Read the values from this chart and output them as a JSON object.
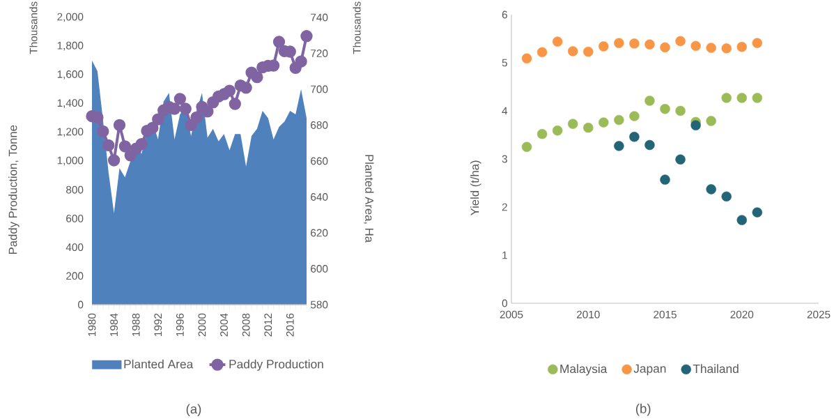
{
  "chart_data": [
    {
      "type": "line",
      "categories": [
        "1980",
        null,
        null,
        null,
        "1984",
        null,
        null,
        null,
        "1988",
        null,
        null,
        null,
        "1992",
        null,
        null,
        null,
        "1996",
        null,
        null,
        null,
        "2000",
        null,
        null,
        null,
        "2004",
        null,
        null,
        null,
        "2008",
        null,
        null,
        null,
        "2012",
        null,
        null,
        null,
        "2016",
        null,
        null,
        null
      ],
      "ylabel": "Paddy Production, Tonne",
      "y2label": "Planted Area, Ha",
      "ylim": [
        0,
        2000
      ],
      "yticks": [
        0,
        200,
        400,
        600,
        800,
        {
          "value": 1000,
          "label": "1,000"
        },
        {
          "value": 1200,
          "label": "1,200"
        },
        {
          "value": 1400,
          "label": "1,400"
        },
        {
          "value": 1600,
          "label": "1,600"
        },
        {
          "value": 1800,
          "label": "1,800"
        },
        {
          "value": 2000,
          "label": "2,000"
        }
      ],
      "y2lim": [
        580,
        740
      ],
      "y2ticks": [
        580,
        600,
        620,
        640,
        660,
        680,
        700,
        720,
        740
      ],
      "legend": "bottom",
      "line_style": "solid",
      "annotations": [
        "Thousands",
        "Thousands",
        "(a)"
      ],
      "series": [
        {
          "name": "Planted Area",
          "type": "area",
          "axis": "y2",
          "color": "#4f81bd",
          "values": [
            716,
            710,
            683,
            654,
            631,
            656,
            651,
            660,
            670,
            664,
            677,
            682,
            672,
            693,
            698,
            672,
            686,
            690,
            674,
            688,
            698,
            673,
            678,
            671,
            675,
            666,
            675,
            675,
            657,
            674,
            678,
            688,
            684,
            672,
            679,
            682,
            688,
            686,
            700,
            684
          ]
        },
        {
          "name": "Paddy Production",
          "type": "line",
          "marker": "circle",
          "color": "#8064a2",
          "values": [
            1312,
            1304,
            1207,
            1110,
            1005,
            1251,
            1102,
            1040,
            1086,
            1118,
            1210,
            1231,
            1291,
            1353,
            1377,
            1364,
            1433,
            1364,
            1251,
            1304,
            1377,
            1345,
            1409,
            1450,
            1466,
            1490,
            1398,
            1526,
            1510,
            1616,
            1584,
            1652,
            1663,
            1665,
            1830,
            1765,
            1762,
            1649,
            1693,
            1870
          ]
        }
      ]
    },
    {
      "type": "scatter",
      "x": [
        2006,
        2007,
        2008,
        2009,
        2010,
        2011,
        2012,
        2013,
        2014,
        2015,
        2016,
        2017,
        2018,
        2019,
        2020,
        2021
      ],
      "xlim": [
        2005,
        2025
      ],
      "xticks": [
        2005,
        2010,
        2015,
        2020,
        2025
      ],
      "ylim": [
        0,
        6
      ],
      "yticks": [
        0,
        1,
        2,
        3,
        4,
        5,
        6
      ],
      "ylabel": "Yield (t/ha)",
      "legend": "bottom",
      "marker": "circle",
      "annotations": [
        "(b)"
      ],
      "series": [
        {
          "name": "Malaysia",
          "color": "#9bbb59",
          "values": [
            3.25,
            3.52,
            3.59,
            3.73,
            3.65,
            3.76,
            3.81,
            3.89,
            4.21,
            4.04,
            4.0,
            3.77,
            3.79,
            4.27,
            4.27,
            4.27
          ]
        },
        {
          "name": "Japan",
          "color": "#f79646",
          "values": [
            5.09,
            5.22,
            5.44,
            5.24,
            5.23,
            5.34,
            5.41,
            5.4,
            5.38,
            5.32,
            5.45,
            5.35,
            5.31,
            5.3,
            5.33,
            5.41
          ]
        },
        {
          "name": "Thailand",
          "color": "#236477",
          "values": [
            null,
            null,
            null,
            null,
            null,
            null,
            3.27,
            3.46,
            3.29,
            2.57,
            2.99,
            3.7,
            2.37,
            2.22,
            1.73,
            1.89
          ]
        }
      ]
    }
  ]
}
